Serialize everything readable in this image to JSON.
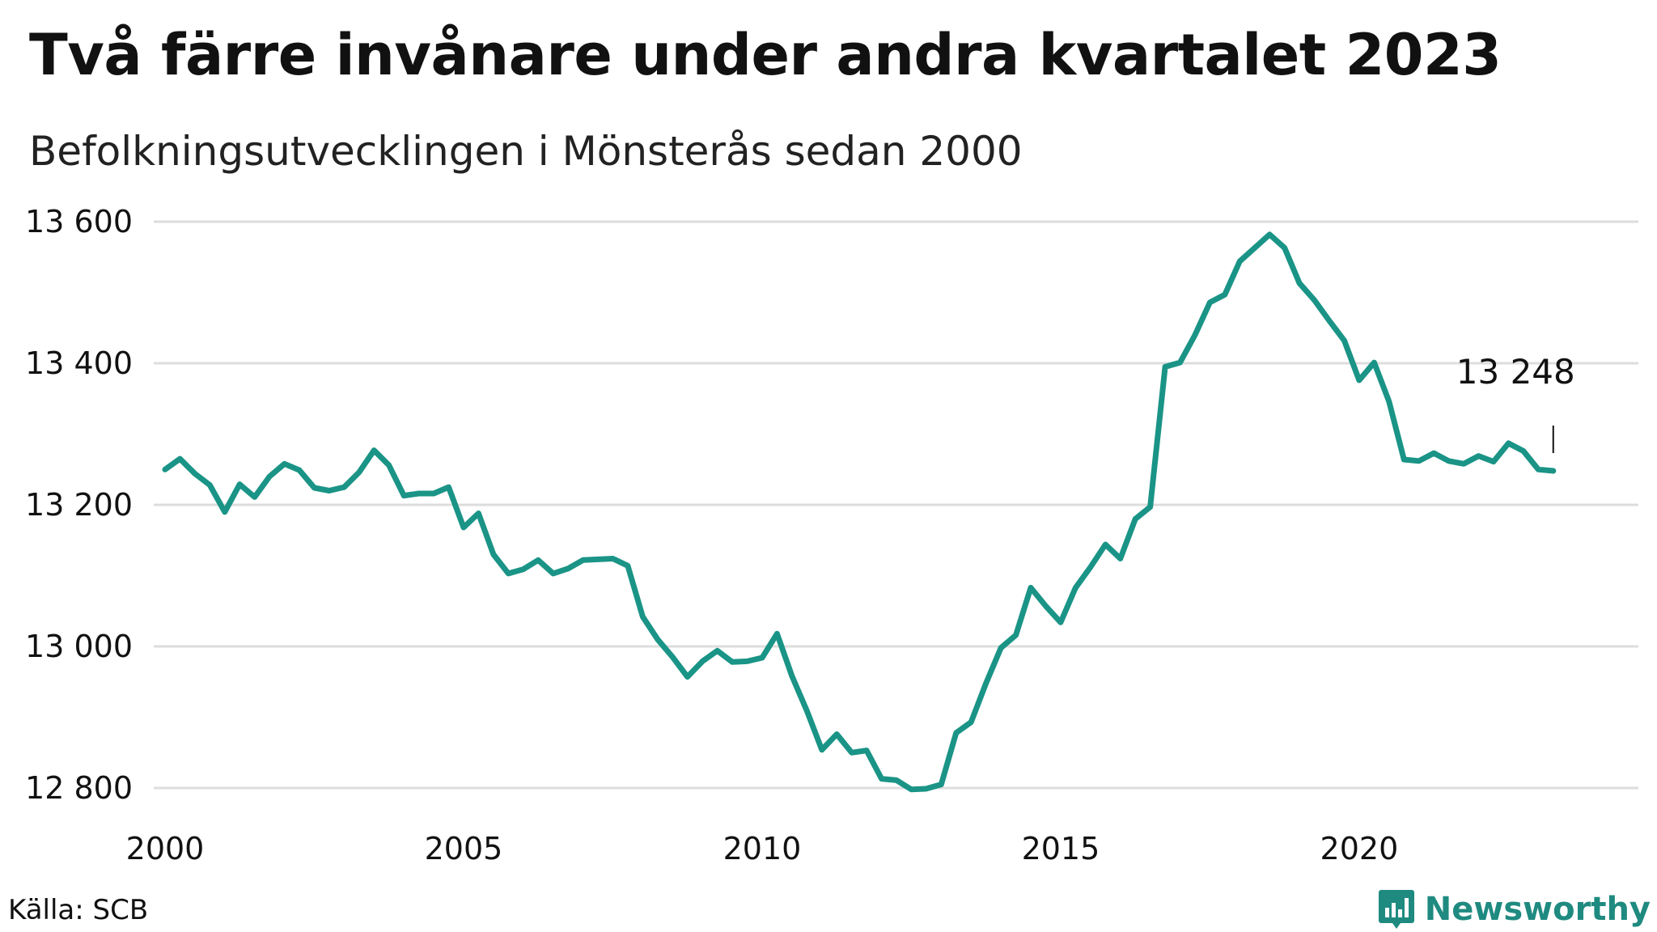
{
  "header": {
    "title": "Två färre invånare under andra kvartalet 2023",
    "subtitle": "Befolkningsutvecklingen i Mönsterås sedan 2000"
  },
  "footer": {
    "source": "Källa: SCB",
    "brand": "Newsworthy"
  },
  "colors": {
    "line": "#1a9486",
    "grid": "#dddddd",
    "brand": "#1f8a80"
  },
  "chart_data": {
    "type": "line",
    "title": "Två färre invånare under andra kvartalet 2023",
    "subtitle": "Befolkningsutvecklingen i Mönsterås sedan 2000",
    "xlabel": "",
    "ylabel": "",
    "xlim": [
      2000,
      2024.5
    ],
    "ylim": [
      12800,
      13600
    ],
    "y_ticks": [
      12800,
      13000,
      13200,
      13400,
      13600
    ],
    "y_tick_labels": [
      "12 800",
      "13 000",
      "13 200",
      "13 400",
      "13 600"
    ],
    "x_ticks": [
      2000,
      2005,
      2010,
      2015,
      2020
    ],
    "x_tick_labels": [
      "2000",
      "2005",
      "2010",
      "2015",
      "2020"
    ],
    "grid": "horizontal",
    "legend": "none",
    "annotation": {
      "label": "13 248",
      "x": 2023.25,
      "y": 13248
    },
    "series": [
      {
        "x": [
          2000.0,
          2000.25,
          2000.5,
          2000.75,
          2001.0,
          2001.25,
          2001.5,
          2001.75,
          2002.0,
          2002.25,
          2002.5,
          2002.75,
          2003.0,
          2003.25,
          2003.5,
          2003.75,
          2004.0,
          2004.25,
          2004.5,
          2004.75,
          2005.0,
          2005.25,
          2005.5,
          2005.75,
          2006.0,
          2006.25,
          2006.5,
          2006.75,
          2007.0,
          2007.25,
          2007.5,
          2007.75,
          2008.0,
          2008.25,
          2008.5,
          2008.75,
          2009.0,
          2009.25,
          2009.5,
          2009.75,
          2010.0,
          2010.25,
          2010.5,
          2010.75,
          2011.0,
          2011.25,
          2011.5,
          2011.75,
          2012.0,
          2012.25,
          2012.5,
          2012.75,
          2013.0,
          2013.25,
          2013.5,
          2013.75,
          2014.0,
          2014.25,
          2014.5,
          2014.75,
          2015.0,
          2015.25,
          2015.5,
          2015.75,
          2016.0,
          2016.25,
          2016.5,
          2016.75,
          2017.0,
          2017.25,
          2017.5,
          2017.75,
          2018.0,
          2018.25,
          2018.5,
          2018.75,
          2019.0,
          2019.25,
          2019.5,
          2019.75,
          2020.0,
          2020.25,
          2020.5,
          2020.75,
          2021.0,
          2021.25,
          2021.5,
          2021.75,
          2022.0,
          2022.25,
          2022.5,
          2022.75,
          2023.0,
          2023.25
        ],
        "values": [
          13250,
          13265,
          13244,
          13228,
          13190,
          13229,
          13211,
          13240,
          13258,
          13249,
          13224,
          13220,
          13225,
          13246,
          13277,
          13256,
          13213,
          13216,
          13216,
          13225,
          13168,
          13188,
          13130,
          13103,
          13109,
          13122,
          13103,
          13110,
          13122,
          13123,
          13124,
          13114,
          13042,
          13010,
          12985,
          12957,
          12979,
          12994,
          12978,
          12979,
          12984,
          13018,
          12958,
          12909,
          12854,
          12876,
          12850,
          12853,
          12813,
          12811,
          12798,
          12799,
          12805,
          12878,
          12893,
          12948,
          12998,
          13016,
          13083,
          13057,
          13034,
          13083,
          13112,
          13144,
          13124,
          13180,
          13197,
          13395,
          13401,
          13440,
          13486,
          13497,
          13544,
          13563,
          13582,
          13563,
          13513,
          13489,
          13460,
          13432,
          13376,
          13401,
          13346,
          13264,
          13262,
          13273,
          13262,
          13258,
          13269,
          13261,
          13287,
          13276,
          13250,
          13248
        ]
      }
    ]
  }
}
